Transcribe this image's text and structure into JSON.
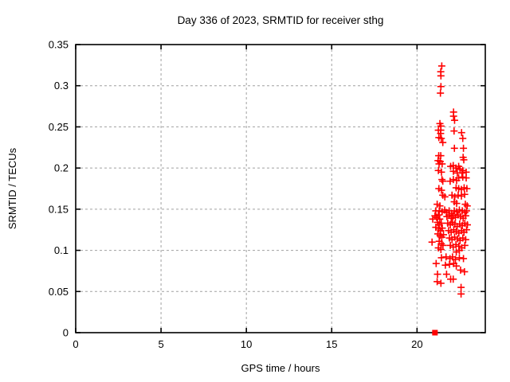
{
  "chart_data": {
    "type": "scatter",
    "title": "Day 336 of 2023, SRMTID for receiver sthg",
    "xlabel": "GPS time / hours",
    "ylabel": "SRMTID / TECUs",
    "xlim": [
      0,
      24
    ],
    "ylim": [
      0,
      0.35
    ],
    "grid": true,
    "legend": false,
    "background_color": "#ffffff",
    "axis_color": "#000000",
    "grid_color": "#a0a0a0",
    "marker_color": "#ff0000",
    "xticks": [
      {
        "v": 0,
        "label": "0"
      },
      {
        "v": 5,
        "label": "5"
      },
      {
        "v": 10,
        "label": "10"
      },
      {
        "v": 15,
        "label": "15"
      },
      {
        "v": 20,
        "label": "20"
      }
    ],
    "yticks": [
      {
        "v": 0,
        "label": "0"
      },
      {
        "v": 0.05,
        "label": "0.05"
      },
      {
        "v": 0.1,
        "label": "0.1"
      },
      {
        "v": 0.15,
        "label": "0.15"
      },
      {
        "v": 0.2,
        "label": "0.2"
      },
      {
        "v": 0.25,
        "label": "0.25"
      },
      {
        "v": 0.3,
        "label": "0.3"
      },
      {
        "v": 0.35,
        "label": "0.35"
      }
    ],
    "series": [
      {
        "name": "SRMTID",
        "marker": "plus",
        "color": "#ff0000",
        "points": [
          [
            21.45,
            0.324
          ],
          [
            21.39,
            0.317
          ],
          [
            21.4,
            0.312
          ],
          [
            21.4,
            0.299
          ],
          [
            21.37,
            0.291
          ],
          [
            22.14,
            0.268
          ],
          [
            22.14,
            0.263
          ],
          [
            21.4,
            0.251
          ],
          [
            21.38,
            0.242
          ],
          [
            21.34,
            0.254
          ],
          [
            22.2,
            0.258
          ],
          [
            21.25,
            0.246
          ],
          [
            21.39,
            0.246
          ],
          [
            22.17,
            0.245
          ],
          [
            22.61,
            0.243
          ],
          [
            21.28,
            0.237
          ],
          [
            21.42,
            0.236
          ],
          [
            22.68,
            0.236
          ],
          [
            21.51,
            0.231
          ],
          [
            22.19,
            0.224
          ],
          [
            22.72,
            0.224
          ],
          [
            21.27,
            0.215
          ],
          [
            21.39,
            0.215
          ],
          [
            22.7,
            0.213
          ],
          [
            22.74,
            0.21
          ],
          [
            21.23,
            0.209
          ],
          [
            21.36,
            0.208
          ],
          [
            21.29,
            0.205
          ],
          [
            21.47,
            0.205
          ],
          [
            21.97,
            0.202
          ],
          [
            22.12,
            0.203
          ],
          [
            22.28,
            0.2
          ],
          [
            22.44,
            0.202
          ],
          [
            22.52,
            0.199
          ],
          [
            22.68,
            0.197
          ],
          [
            21.25,
            0.197
          ],
          [
            21.43,
            0.195
          ],
          [
            22.13,
            0.196
          ],
          [
            22.36,
            0.194
          ],
          [
            22.63,
            0.194
          ],
          [
            22.88,
            0.195
          ],
          [
            21.46,
            0.186
          ],
          [
            21.51,
            0.184
          ],
          [
            21.94,
            0.184
          ],
          [
            22.13,
            0.186
          ],
          [
            22.32,
            0.185
          ],
          [
            22.44,
            0.188
          ],
          [
            22.68,
            0.189
          ],
          [
            22.88,
            0.188
          ],
          [
            21.28,
            0.175
          ],
          [
            21.43,
            0.173
          ],
          [
            22.29,
            0.176
          ],
          [
            22.44,
            0.175
          ],
          [
            22.6,
            0.174
          ],
          [
            22.76,
            0.176
          ],
          [
            22.92,
            0.175
          ],
          [
            21.51,
            0.167
          ],
          [
            21.63,
            0.165
          ],
          [
            22.05,
            0.167
          ],
          [
            22.21,
            0.165
          ],
          [
            22.41,
            0.167
          ],
          [
            22.6,
            0.166
          ],
          [
            22.79,
            0.168
          ],
          [
            21.18,
            0.156
          ],
          [
            21.34,
            0.154
          ],
          [
            22.18,
            0.159
          ],
          [
            22.32,
            0.157
          ],
          [
            22.83,
            0.156
          ],
          [
            22.94,
            0.154
          ],
          [
            21.1,
            0.148
          ],
          [
            21.3,
            0.148
          ],
          [
            21.47,
            0.147
          ],
          [
            21.62,
            0.149
          ],
          [
            21.73,
            0.146
          ],
          [
            21.88,
            0.148
          ],
          [
            22.03,
            0.145
          ],
          [
            22.18,
            0.148
          ],
          [
            22.33,
            0.147
          ],
          [
            22.48,
            0.149
          ],
          [
            22.65,
            0.148
          ],
          [
            22.8,
            0.146
          ],
          [
            22.9,
            0.148
          ],
          [
            20.92,
            0.138
          ],
          [
            21.05,
            0.142
          ],
          [
            21.15,
            0.14
          ],
          [
            21.25,
            0.143
          ],
          [
            21.33,
            0.138
          ],
          [
            21.2,
            0.134
          ],
          [
            21.3,
            0.131
          ],
          [
            21.42,
            0.133
          ],
          [
            21.1,
            0.128
          ],
          [
            21.27,
            0.126
          ],
          [
            21.38,
            0.124
          ],
          [
            21.48,
            0.127
          ],
          [
            21.22,
            0.12
          ],
          [
            21.35,
            0.118
          ],
          [
            21.45,
            0.116
          ],
          [
            21.55,
            0.119
          ],
          [
            20.88,
            0.11
          ],
          [
            21.3,
            0.111
          ],
          [
            21.42,
            0.108
          ],
          [
            21.52,
            0.106
          ],
          [
            21.25,
            0.103
          ],
          [
            21.4,
            0.101
          ],
          [
            21.75,
            0.141
          ],
          [
            21.88,
            0.143
          ],
          [
            22.0,
            0.139
          ],
          [
            22.12,
            0.142
          ],
          [
            22.25,
            0.14
          ],
          [
            22.4,
            0.143
          ],
          [
            22.55,
            0.141
          ],
          [
            22.7,
            0.139
          ],
          [
            22.85,
            0.142
          ],
          [
            21.8,
            0.133
          ],
          [
            21.95,
            0.131
          ],
          [
            22.08,
            0.134
          ],
          [
            22.22,
            0.132
          ],
          [
            22.35,
            0.129
          ],
          [
            22.5,
            0.132
          ],
          [
            22.65,
            0.13
          ],
          [
            22.8,
            0.133
          ],
          [
            22.95,
            0.131
          ],
          [
            21.85,
            0.124
          ],
          [
            22.0,
            0.122
          ],
          [
            22.15,
            0.125
          ],
          [
            22.3,
            0.123
          ],
          [
            22.45,
            0.121
          ],
          [
            22.6,
            0.124
          ],
          [
            22.75,
            0.122
          ],
          [
            22.9,
            0.125
          ],
          [
            21.9,
            0.115
          ],
          [
            22.05,
            0.113
          ],
          [
            22.2,
            0.116
          ],
          [
            22.38,
            0.114
          ],
          [
            22.52,
            0.112
          ],
          [
            22.68,
            0.115
          ],
          [
            22.85,
            0.113
          ],
          [
            21.95,
            0.106
          ],
          [
            22.12,
            0.104
          ],
          [
            22.28,
            0.107
          ],
          [
            22.45,
            0.105
          ],
          [
            22.62,
            0.103
          ],
          [
            22.8,
            0.106
          ],
          [
            22.3,
            0.098
          ],
          [
            22.48,
            0.1
          ],
          [
            21.43,
            0.091
          ],
          [
            21.7,
            0.092
          ],
          [
            21.93,
            0.09
          ],
          [
            22.08,
            0.092
          ],
          [
            22.25,
            0.089
          ],
          [
            22.48,
            0.091
          ],
          [
            22.72,
            0.09
          ],
          [
            21.12,
            0.084
          ],
          [
            21.66,
            0.082
          ],
          [
            21.9,
            0.083
          ],
          [
            22.15,
            0.084
          ],
          [
            22.3,
            0.081
          ],
          [
            22.55,
            0.076
          ],
          [
            22.78,
            0.074
          ],
          [
            21.2,
            0.071
          ],
          [
            21.73,
            0.071
          ],
          [
            21.97,
            0.065
          ],
          [
            21.18,
            0.062
          ],
          [
            21.4,
            0.06
          ],
          [
            22.12,
            0.065
          ],
          [
            22.58,
            0.055
          ],
          [
            22.58,
            0.047
          ]
        ]
      },
      {
        "name": "zero marker",
        "marker": "square",
        "color": "#ff0000",
        "points": [
          [
            21.05,
            0
          ]
        ]
      }
    ]
  }
}
